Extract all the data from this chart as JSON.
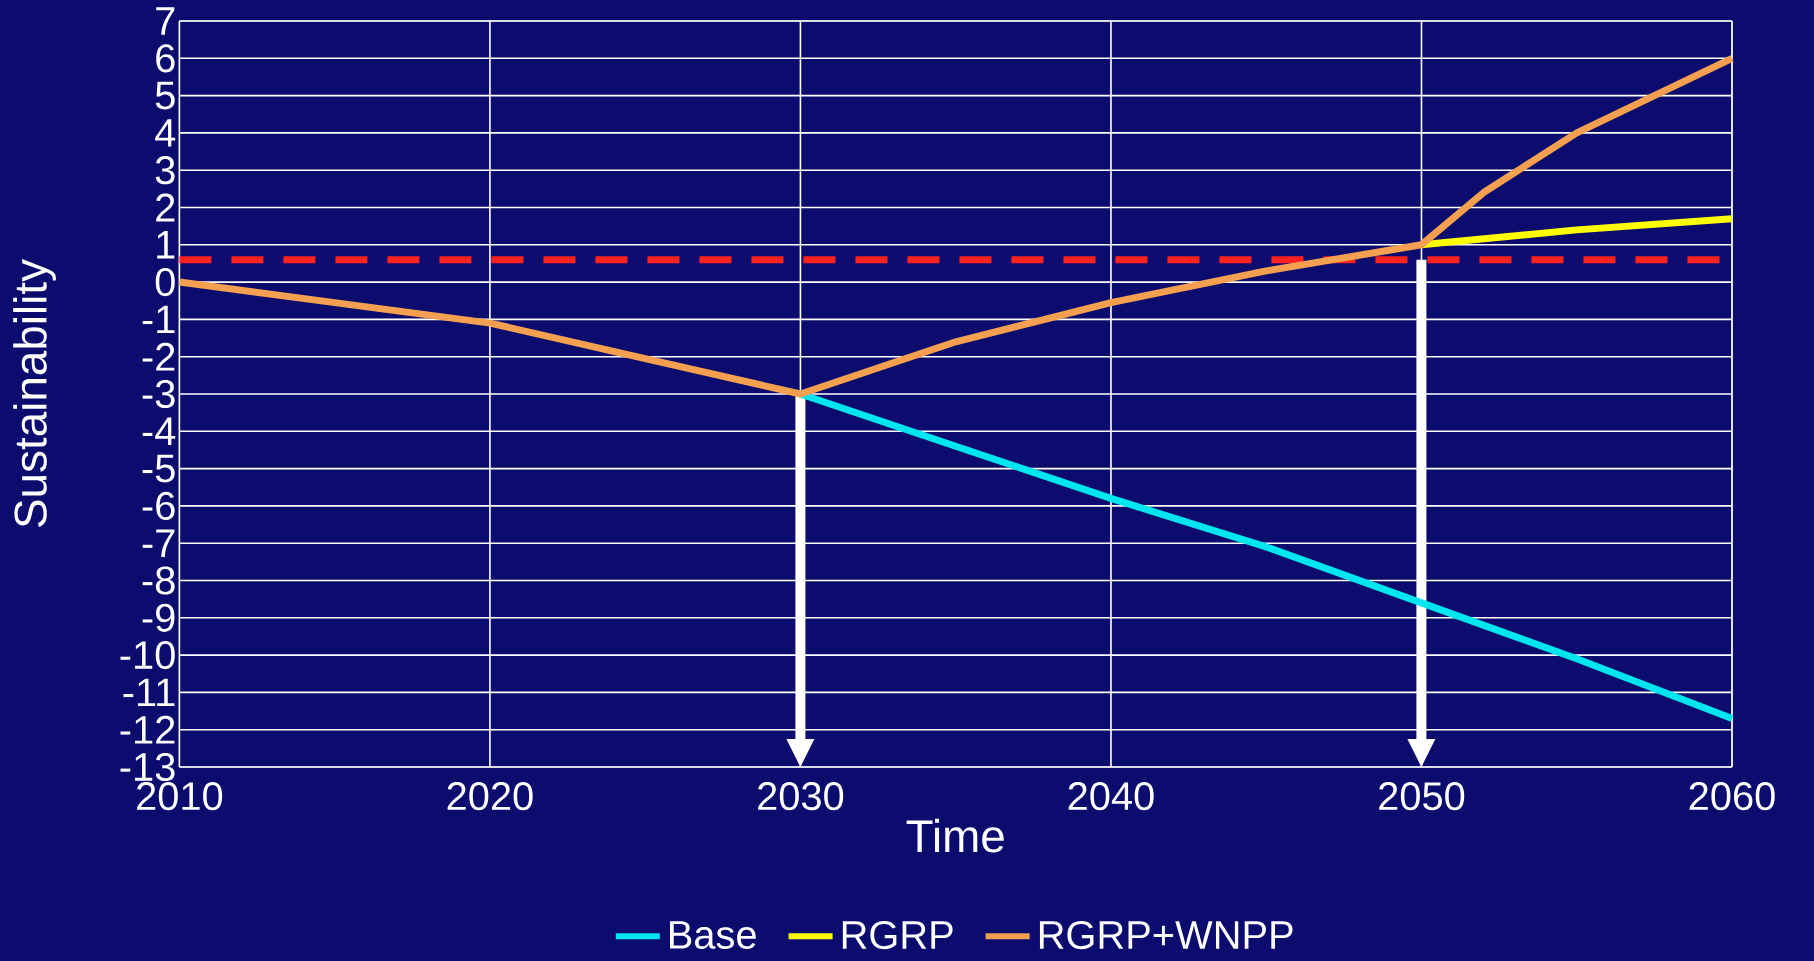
{
  "chart_data": {
    "type": "line",
    "xlabel": "Time",
    "ylabel": "Sustainability",
    "xlim": [
      2010,
      2060
    ],
    "xticks": [
      2010,
      2020,
      2030,
      2040,
      2050,
      2060
    ],
    "ylim": [
      -13,
      7
    ],
    "yticks": [
      -13,
      -12,
      -11,
      -10,
      -9,
      -8,
      -7,
      -6,
      -5,
      -4,
      -3,
      -2,
      -1,
      0,
      1,
      2,
      3,
      4,
      5,
      6,
      7
    ],
    "grid": true,
    "legend": "bottom",
    "marker": "none",
    "line_style": "solid",
    "ref_lines": [
      {
        "axis": "y",
        "value": 0.6,
        "color": "#ff2020",
        "line_style": "dashed"
      }
    ],
    "series": [
      {
        "name": "Base",
        "color": "#00e5ee",
        "x": [
          2030,
          2035,
          2040,
          2045,
          2050,
          2055,
          2060
        ],
        "values": [
          -3.0,
          -4.4,
          -5.8,
          -7.1,
          -8.6,
          -10.1,
          -11.7
        ]
      },
      {
        "name": "RGRP",
        "color": "#ffff00",
        "x": [
          2050,
          2055,
          2060
        ],
        "values": [
          1.0,
          1.4,
          1.7
        ]
      },
      {
        "name": "RGRP+WNPP",
        "color": "#f4a050",
        "x": [
          2010,
          2015,
          2020,
          2025,
          2030,
          2035,
          2040,
          2045,
          2050,
          2052,
          2055,
          2060
        ],
        "values": [
          0.0,
          -0.55,
          -1.1,
          -2.05,
          -3.0,
          -1.6,
          -0.55,
          0.3,
          1.0,
          2.4,
          4.0,
          6.0
        ]
      }
    ]
  }
}
